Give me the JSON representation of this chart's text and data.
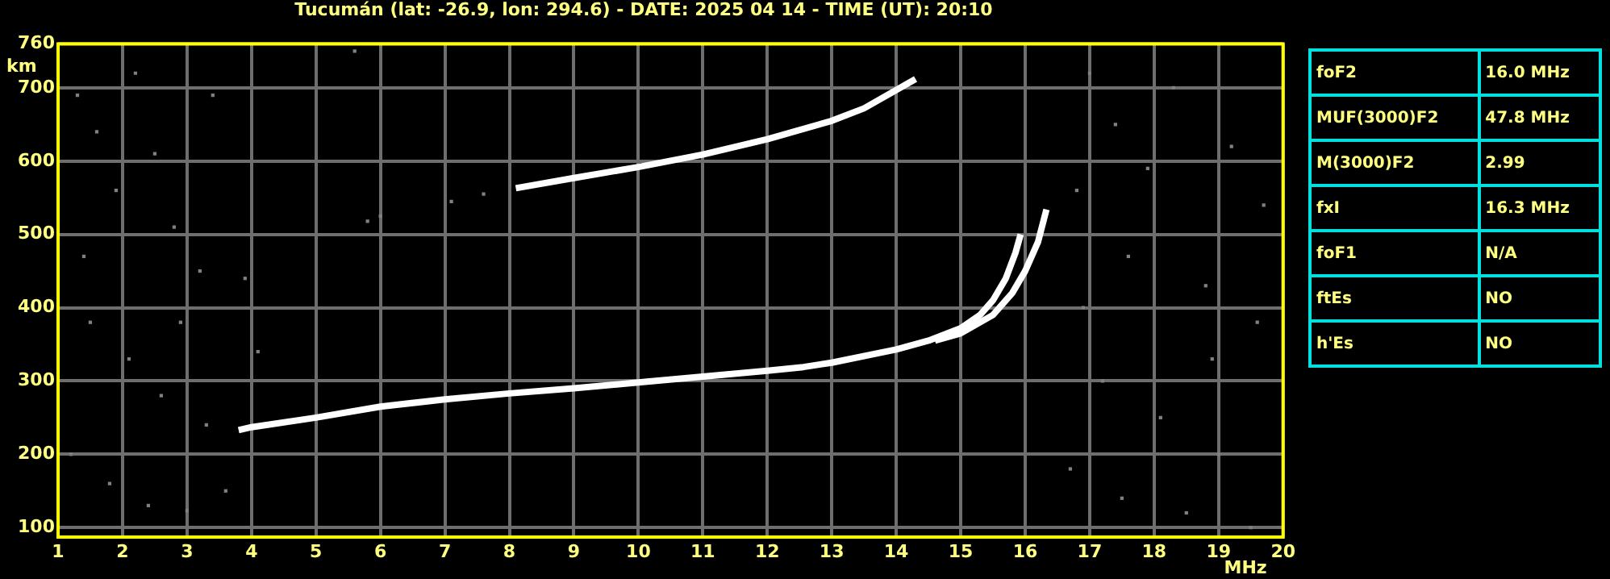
{
  "chart_data": {
    "type": "line",
    "title": "Tucumán (lat: -26.9, lon: 294.6) - DATE: 2025 04 14 - TIME (UT): 20:10",
    "xlabel": "MHz",
    "ylabel": "km",
    "xlim": [
      1,
      20
    ],
    "xticks": [
      1,
      2,
      3,
      4,
      5,
      6,
      7,
      8,
      9,
      10,
      11,
      12,
      13,
      14,
      15,
      16,
      17,
      18,
      19,
      20
    ],
    "ylim": [
      87,
      760
    ],
    "yticks": [
      100,
      200,
      300,
      400,
      500,
      600,
      700,
      760
    ],
    "grid": true,
    "marker": "none",
    "line_style": "solid",
    "series": [
      {
        "color": "#ffffff",
        "x": [
          3.8,
          4,
          5,
          6,
          7,
          8,
          9,
          10,
          11,
          12,
          12.56,
          13,
          14,
          14.5,
          15,
          15.3,
          15.5,
          15.7,
          15.85,
          15.93
        ],
        "values": [
          233,
          237,
          250,
          265,
          275,
          283,
          290,
          298,
          306,
          314,
          319,
          325,
          343,
          355,
          372,
          390,
          410,
          440,
          475,
          500
        ]
      },
      {
        "color": "#ffffff",
        "x": [
          14.6,
          15,
          15.5,
          15.8,
          16.0,
          16.2,
          16.33
        ],
        "values": [
          355,
          365,
          390,
          420,
          450,
          490,
          534
        ]
      },
      {
        "color": "#ffffff",
        "x": [
          8.1,
          9,
          10,
          11,
          12,
          13,
          13.5,
          14.3
        ],
        "values": [
          563,
          577,
          592,
          609,
          630,
          655,
          672,
          712
        ]
      },
      {
        "type": "scatter",
        "marker": "square",
        "color": "#808080",
        "x": [
          1.3,
          1.6,
          1.9,
          2.2,
          2.5,
          2.8,
          3.2,
          3.4,
          1.5,
          2.1,
          2.6,
          3.3,
          1.2,
          2.4,
          3.0,
          3.6,
          1.8,
          3.9,
          2.9,
          1.4,
          4.1,
          5.6,
          6.0,
          5.8,
          7.1,
          7.6,
          17.0,
          17.4,
          18.3,
          19.2,
          16.8,
          17.6,
          18.8,
          19.6,
          17.2,
          18.1,
          19.0,
          16.7,
          17.5,
          18.5,
          19.5,
          18.9,
          19.7,
          17.9,
          16.9
        ],
        "values": [
          690,
          640,
          560,
          720,
          610,
          510,
          450,
          690,
          380,
          330,
          280,
          240,
          200,
          130,
          123,
          150,
          160,
          440,
          380,
          470,
          340,
          750,
          525,
          518,
          545,
          555,
          720,
          650,
          700,
          620,
          560,
          470,
          430,
          380,
          300,
          250,
          200,
          180,
          140,
          120,
          100,
          330,
          540,
          590,
          400
        ]
      }
    ],
    "annotations": [
      "foF2",
      "16.0 MHz",
      "MUF(3000)F2",
      "47.8 MHz",
      "M(3000)F2",
      "2.99",
      "fxI",
      "16.3 MHz",
      "foF1",
      "N/A",
      "ftEs",
      "NO",
      "h'Es",
      "NO"
    ]
  }
}
